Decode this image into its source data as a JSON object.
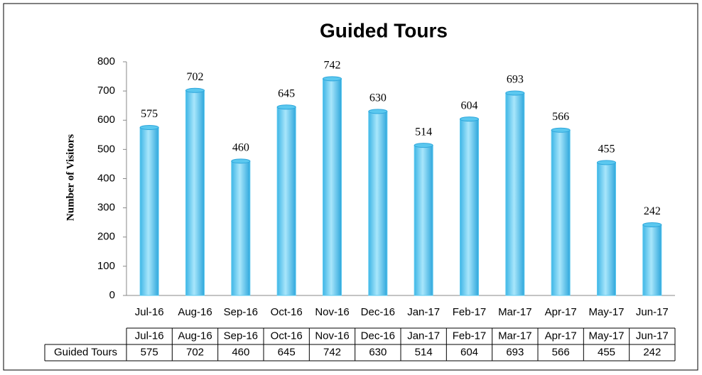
{
  "chart_data": {
    "type": "bar",
    "title": "Guided Tours",
    "y_label": "Number of Visitors",
    "categories": [
      "Jul-16",
      "Aug-16",
      "Sep-16",
      "Oct-16",
      "Nov-16",
      "Dec-16",
      "Jan-17",
      "Feb-17",
      "Mar-17",
      "Apr-17",
      "May-17",
      "Jun-17"
    ],
    "series": [
      {
        "name": "Guided Tours",
        "color": "#5bc8ef",
        "values": [
          575,
          702,
          460,
          645,
          742,
          630,
          514,
          604,
          693,
          566,
          455,
          242
        ]
      }
    ],
    "ylim": [
      0,
      800
    ],
    "yticks": [
      0,
      100,
      200,
      300,
      400,
      500,
      600,
      700,
      800
    ],
    "grid": false
  }
}
